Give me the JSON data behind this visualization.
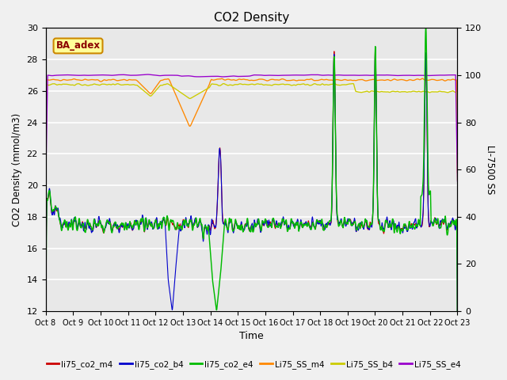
{
  "title": "CO2 Density",
  "xlabel": "Time",
  "ylabel_left": "CO2 Density (mmol/m3)",
  "ylabel_right": "LI-7500 SS",
  "ylim_left": [
    12,
    30
  ],
  "ylim_right": [
    0,
    120
  ],
  "yticks_left": [
    12,
    14,
    16,
    18,
    20,
    22,
    24,
    26,
    28,
    30
  ],
  "yticks_right": [
    0,
    20,
    40,
    60,
    80,
    100,
    120
  ],
  "xtick_labels": [
    "Oct 8",
    "Oct 9",
    "Oct 10",
    "Oct 11",
    "Oct 12",
    "Oct 13",
    "Oct 14",
    "Oct 15",
    "Oct 16",
    "Oct 17",
    "Oct 18",
    "Oct 19",
    "Oct 20",
    "Oct 21",
    "Oct 22",
    "Oct 23"
  ],
  "colors": {
    "li75_co2_m4": "#cc0000",
    "li75_co2_b4": "#0000cc",
    "li75_co2_e4": "#00bb00",
    "Li75_SS_m4": "#ff8800",
    "Li75_SS_b4": "#cccc00",
    "Li75_SS_e4": "#9900cc"
  },
  "annotation_text": "BA_adex",
  "annotation_facecolor": "#ffff99",
  "annotation_edgecolor": "#cc8800",
  "annotation_textcolor": "#8B0000",
  "background_color": "#e8e8e8",
  "fig_background": "#f0f0f0",
  "grid_color": "#ffffff",
  "linewidth": 0.8
}
